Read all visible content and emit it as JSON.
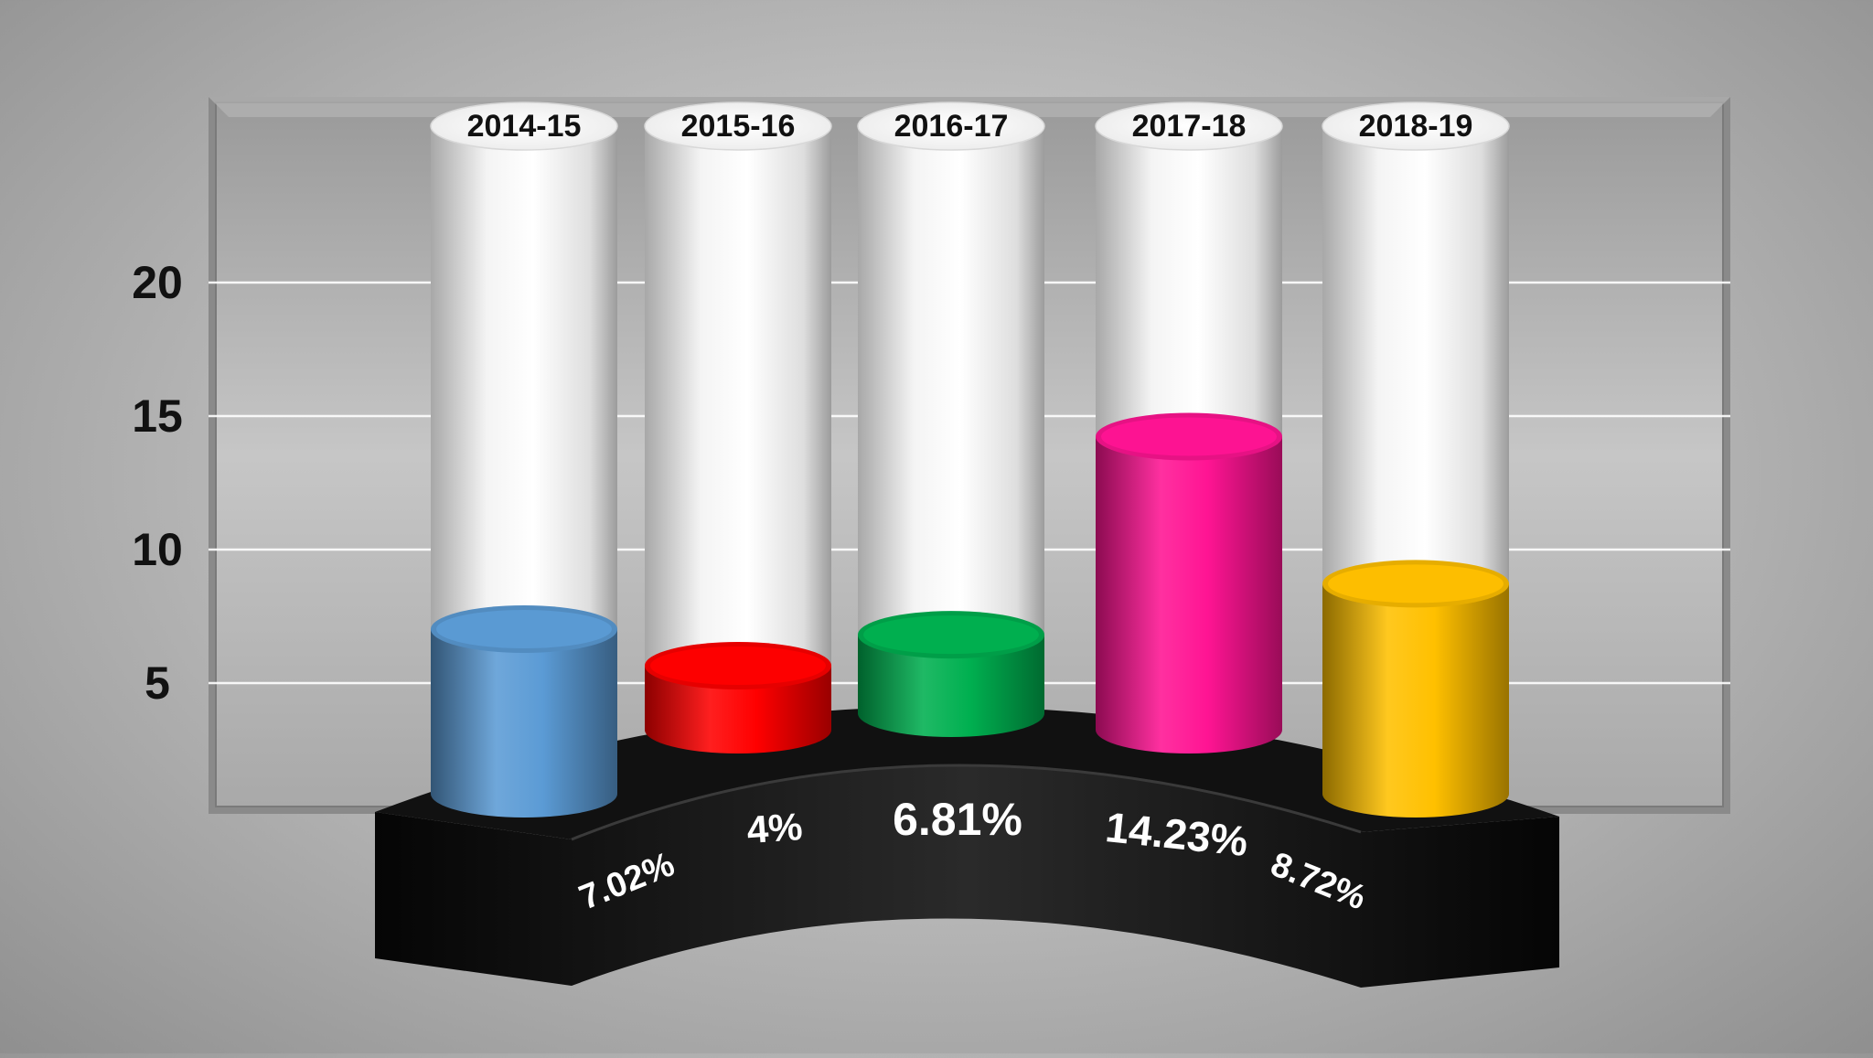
{
  "chart_data": {
    "type": "bar",
    "categories": [
      "2014-15",
      "2015-16",
      "2016-17",
      "2017-18",
      "2018-19"
    ],
    "values": [
      7.02,
      4,
      6.81,
      14.23,
      8.72
    ],
    "value_labels": [
      "7.02%",
      "4%",
      "6.81%",
      "14.23%",
      "8.72%"
    ],
    "colors": [
      "#5b9bd5",
      "#ff0000",
      "#00b050",
      "#ff1493",
      "#ffc000"
    ],
    "yticks": [
      "5",
      "10",
      "15",
      "20"
    ],
    "ytick_values": [
      5,
      10,
      15,
      20
    ],
    "ylim": [
      0,
      25
    ],
    "grid": true,
    "legend": "none",
    "title": "",
    "xlabel": "",
    "ylabel": ""
  }
}
